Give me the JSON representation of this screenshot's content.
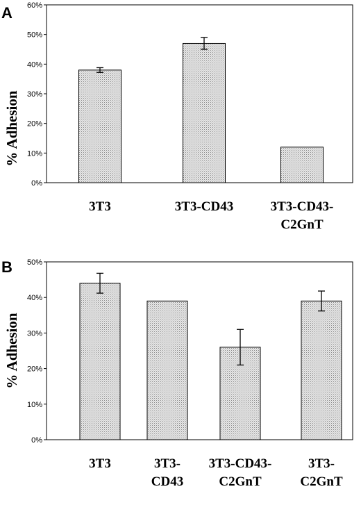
{
  "chart_data": [
    {
      "panel": "A",
      "type": "bar",
      "ylabel": "% Adhesion",
      "xlabel": "",
      "ylim": [
        0,
        60
      ],
      "yticks": [
        "0%",
        "10%",
        "20%",
        "30%",
        "40%",
        "50%",
        "60%"
      ],
      "categories": [
        [
          "3T3"
        ],
        [
          "3T3-CD43"
        ],
        [
          "3T3-CD43-",
          "C2GnT"
        ]
      ],
      "values": [
        38,
        47,
        12
      ],
      "errors": [
        0.8,
        2,
        0
      ],
      "grid": false,
      "bar_color": "#d8d8d8"
    },
    {
      "panel": "B",
      "type": "bar",
      "ylabel": "% Adhesion",
      "xlabel": "",
      "ylim": [
        0,
        50
      ],
      "yticks": [
        "0%",
        "10%",
        "20%",
        "30%",
        "40%",
        "50%"
      ],
      "categories": [
        [
          "3T3"
        ],
        [
          "3T3-",
          "CD43"
        ],
        [
          "3T3-CD43-",
          "C2GnT"
        ],
        [
          "3T3-",
          "C2GnT"
        ]
      ],
      "values": [
        44,
        39,
        26,
        39
      ],
      "errors": [
        2.8,
        0,
        5,
        2.8
      ],
      "grid": false,
      "bar_color": "#d8d8d8"
    }
  ]
}
